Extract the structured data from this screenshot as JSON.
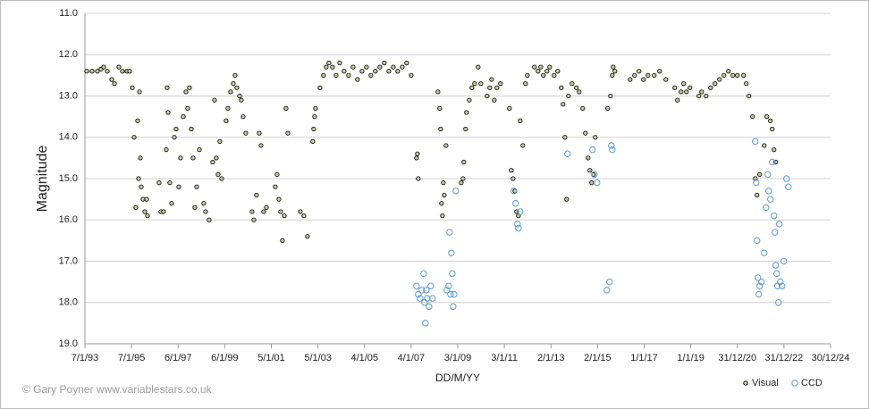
{
  "chart_data": {
    "type": "scatter",
    "y_label": "Magnitude",
    "x_label": "DD/M/YY",
    "credit": "© Gary Poyner  www.variablestars.co.uk",
    "xlim": [
      33976,
      45656
    ],
    "xticks": [
      {
        "value": 33976,
        "label": "7/1/93"
      },
      {
        "value": 34706,
        "label": "7/1/95"
      },
      {
        "value": 35436,
        "label": "6/1/97"
      },
      {
        "value": 36166,
        "label": "6/1/99"
      },
      {
        "value": 36896,
        "label": "5/1/01"
      },
      {
        "value": 37626,
        "label": "5/1/03"
      },
      {
        "value": 38356,
        "label": "4/1/05"
      },
      {
        "value": 39086,
        "label": "4/1/07"
      },
      {
        "value": 39816,
        "label": "3/1/09"
      },
      {
        "value": 40546,
        "label": "3/1/11"
      },
      {
        "value": 41276,
        "label": "2/1/13"
      },
      {
        "value": 42006,
        "label": "2/1/15"
      },
      {
        "value": 42736,
        "label": "1/1/17"
      },
      {
        "value": 43466,
        "label": "1/1/19"
      },
      {
        "value": 44196,
        "label": "31/12/20"
      },
      {
        "value": 44926,
        "label": "31/12/22"
      },
      {
        "value": 45656,
        "label": "30/12/24"
      }
    ],
    "ylim": [
      11,
      19
    ],
    "y_inverted": true,
    "yticks": [
      {
        "value": 11,
        "label": "11.0"
      },
      {
        "value": 12,
        "label": "12.0"
      },
      {
        "value": 13,
        "label": "13.0"
      },
      {
        "value": 14,
        "label": "14.0"
      },
      {
        "value": 15,
        "label": "15.0"
      },
      {
        "value": 16,
        "label": "16.0"
      },
      {
        "value": 17,
        "label": "17.0"
      },
      {
        "value": 18,
        "label": "18.0"
      },
      {
        "value": 19,
        "label": "19.0"
      }
    ],
    "grid": true,
    "legend": "bottom-right",
    "series": [
      {
        "name": "Visual",
        "color": "#c9cc9c",
        "edge": "#111111",
        "x": [
          34004,
          34088,
          34172,
          34228,
          34270,
          34326,
          34396,
          34438,
          34508,
          34564,
          34634,
          34676,
          34718,
          34746,
          34774,
          34802,
          34816,
          34830,
          34844,
          34858,
          34886,
          34914,
          34942,
          34956,
          35138,
          35166,
          35208,
          35250,
          35264,
          35278,
          35306,
          35334,
          35376,
          35404,
          35446,
          35474,
          35516,
          35558,
          35586,
          35614,
          35642,
          35670,
          35698,
          35726,
          35768,
          35838,
          35866,
          35922,
          35978,
          36006,
          36034,
          36062,
          36090,
          36118,
          36188,
          36216,
          36258,
          36300,
          36328,
          36356,
          36398,
          36426,
          36454,
          36496,
          36594,
          36622,
          36664,
          36706,
          36734,
          36776,
          36818,
          36958,
          36986,
          37014,
          37042,
          37070,
          37098,
          37126,
          37154,
          37350,
          37406,
          37462,
          37546,
          37560,
          37574,
          37588,
          37658,
          37714,
          37756,
          37798,
          37854,
          37910,
          37966,
          38036,
          38106,
          38176,
          38246,
          38316,
          38386,
          38456,
          38526,
          38596,
          38666,
          38736,
          38806,
          38876,
          38946,
          39016,
          39086,
          39170,
          39184,
          39198,
          39506,
          39534,
          39548,
          39562,
          39576,
          39590,
          39604,
          39632,
          39870,
          39898,
          39912,
          39940,
          39954,
          39996,
          40038,
          40080,
          40136,
          40178,
          40276,
          40318,
          40346,
          40388,
          40430,
          40486,
          40626,
          40654,
          40682,
          40710,
          40738,
          40766,
          40794,
          40836,
          40878,
          40906,
          41018,
          41074,
          41116,
          41158,
          41214,
          41256,
          41326,
          41382,
          41438,
          41466,
          41494,
          41522,
          41550,
          41606,
          41676,
          41718,
          41774,
          41816,
          41858,
          41886,
          41914,
          41942,
          41970,
          42166,
          42208,
          42236,
          42250,
          42278,
          42516,
          42586,
          42656,
          42726,
          42796,
          42894,
          42978,
          43076,
          43216,
          43258,
          43314,
          43356,
          43398,
          43454,
          43594,
          43636,
          43706,
          43776,
          43846,
          43916,
          43986,
          44056,
          44126,
          44196,
          44294,
          44336,
          44378,
          44434,
          44476,
          44504,
          44546,
          44616,
          44658,
          44714,
          44742,
          44770,
          44798
        ],
        "values": [
          12.4,
          12.4,
          12.4,
          12.35,
          12.3,
          12.4,
          12.6,
          12.7,
          12.3,
          12.4,
          12.4,
          12.4,
          12.8,
          14.0,
          15.7,
          13.6,
          15.0,
          12.9,
          14.5,
          15.2,
          15.5,
          15.8,
          15.5,
          15.9,
          15.1,
          15.8,
          15.8,
          14.3,
          12.8,
          13.4,
          15.1,
          15.6,
          14.0,
          13.8,
          15.2,
          14.5,
          13.5,
          12.9,
          13.3,
          12.8,
          13.8,
          14.5,
          15.7,
          15.2,
          14.3,
          15.6,
          15.8,
          16.0,
          14.6,
          13.1,
          14.5,
          14.9,
          14.1,
          15.0,
          13.6,
          13.3,
          12.9,
          12.7,
          12.5,
          12.8,
          13.0,
          13.1,
          13.5,
          13.9,
          15.8,
          16.0,
          15.4,
          13.9,
          14.2,
          15.8,
          15.7,
          15.2,
          14.9,
          15.5,
          15.8,
          16.5,
          15.9,
          13.3,
          13.9,
          15.8,
          15.9,
          16.4,
          14.1,
          13.8,
          13.5,
          13.3,
          12.8,
          12.5,
          12.3,
          12.2,
          12.3,
          12.5,
          12.2,
          12.4,
          12.5,
          12.3,
          12.6,
          12.4,
          12.3,
          12.5,
          12.4,
          12.3,
          12.2,
          12.4,
          12.3,
          12.4,
          12.3,
          12.2,
          12.5,
          14.5,
          14.4,
          15.0,
          12.9,
          13.3,
          13.8,
          15.6,
          15.9,
          15.1,
          15.4,
          14.2,
          15.1,
          15.0,
          14.6,
          13.8,
          13.4,
          13.1,
          12.8,
          12.7,
          12.3,
          12.7,
          13.0,
          12.8,
          12.6,
          13.1,
          12.8,
          12.7,
          13.3,
          14.8,
          15.0,
          15.3,
          15.8,
          15.9,
          13.6,
          14.2,
          12.7,
          12.5,
          12.3,
          12.4,
          12.3,
          12.5,
          12.4,
          12.3,
          12.5,
          12.4,
          12.8,
          13.2,
          14.0,
          15.5,
          13.0,
          12.7,
          12.8,
          12.9,
          13.3,
          13.9,
          14.5,
          14.8,
          15.1,
          14.9,
          14.0,
          13.3,
          13.0,
          12.5,
          12.3,
          12.4,
          12.6,
          12.5,
          12.4,
          12.6,
          12.5,
          12.5,
          12.4,
          12.6,
          12.8,
          13.1,
          12.9,
          12.7,
          12.9,
          12.8,
          13.0,
          12.9,
          13.0,
          12.8,
          12.7,
          12.6,
          12.5,
          12.4,
          12.5,
          12.5,
          12.5,
          12.7,
          13.0,
          13.5,
          15.0,
          15.4,
          14.9,
          14.2,
          13.5,
          13.6,
          13.8,
          14.3,
          14.6
        ]
      },
      {
        "name": "CCD",
        "color": "none",
        "edge": "#5b9bd5",
        "x": [
          39170,
          39198,
          39226,
          39254,
          39282,
          39296,
          39310,
          39324,
          39338,
          39366,
          39394,
          39422,
          39646,
          39674,
          39688,
          39702,
          39716,
          39730,
          39744,
          39758,
          39786,
          40696,
          40724,
          40752,
          40766,
          40794,
          41536,
          41928,
          41956,
          41998,
          42152,
          42194,
          42222,
          42236,
          44476,
          44490,
          44504,
          44518,
          44532,
          44546,
          44574,
          44616,
          44644,
          44672,
          44686,
          44714,
          44742,
          44770,
          44784,
          44798,
          44812,
          44826,
          44840,
          44854,
          44868,
          44896,
          44924,
          44966,
          44994
        ],
        "values": [
          17.6,
          17.8,
          17.9,
          17.7,
          17.3,
          18.0,
          18.5,
          17.7,
          17.9,
          18.1,
          17.6,
          17.9,
          17.7,
          17.6,
          16.3,
          17.8,
          16.8,
          17.3,
          18.1,
          17.8,
          15.3,
          15.3,
          15.6,
          16.1,
          16.2,
          15.8,
          14.4,
          14.3,
          14.9,
          15.1,
          17.7,
          17.5,
          14.2,
          14.3,
          14.1,
          15.1,
          16.5,
          17.4,
          17.8,
          17.6,
          17.5,
          16.8,
          15.7,
          14.9,
          15.3,
          15.5,
          14.6,
          15.9,
          16.3,
          17.1,
          17.3,
          17.6,
          18.0,
          16.1,
          17.5,
          17.6,
          17.0,
          15.0,
          15.2
        ]
      }
    ]
  }
}
